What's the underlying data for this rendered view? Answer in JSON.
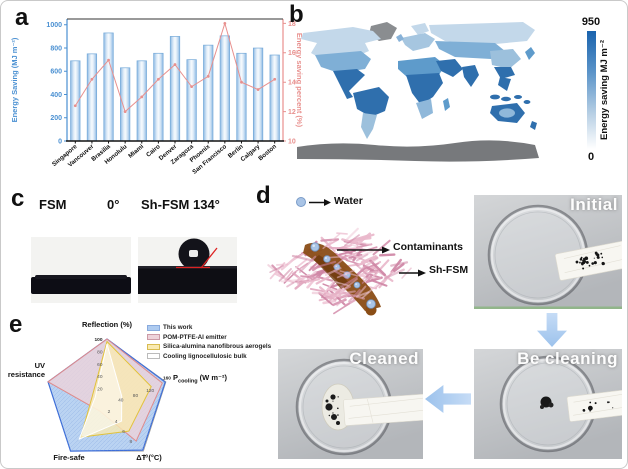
{
  "figure": {
    "panel_labels": {
      "a": "a",
      "b": "b",
      "c": "c",
      "d": "d",
      "e": "e"
    }
  },
  "panel_a": {
    "ylabel_left": "Energy Saving (MJ m⁻²)",
    "ylabel_right": "Energy saving percent (%)"
  },
  "panel_b": {
    "colorbar_max": "950",
    "colorbar_min": "0",
    "colorbar_label": "Energy saving MJ m⁻²"
  },
  "panel_c": {
    "left_sample": "FSM",
    "left_angle": "0°",
    "right_label": "Sh-FSM 134°"
  },
  "panel_d": {
    "water": "Water",
    "contaminants": "Contaminants",
    "membrane": "Sh-FSM",
    "photo_initial": "Initial",
    "photo_cleaning": "Be cleaning",
    "photo_cleaned": "Cleaned"
  },
  "panel_e": {
    "legend": [
      "This work",
      "POM-PTFE-Al emitter",
      "Silica-alumina nanofibrous aerogels",
      "Cooling lignocellulosic bulk"
    ],
    "axis_reflection": "Reflection (%)",
    "pcool": {
      "p": "P",
      "sub": "cooling",
      "units": " (W m⁻²)"
    },
    "axis_dt": "ΔT (°C)",
    "axis_firesafe": "Fire-safe",
    "axis_uv": "UV resistance"
  },
  "chart_data": [
    {
      "id": "city-energy-saving",
      "type": "bar",
      "categories": [
        "Singapore",
        "Vancouver",
        "Brasilia",
        "Honolulu",
        "Miami",
        "Cairo",
        "Denver",
        "Zaragoza",
        "Phoenix",
        "San Francisco",
        "Berlin",
        "Calgary",
        "Boston"
      ],
      "series": [
        {
          "name": "Energy Saving (MJ m⁻²)",
          "type": "bar",
          "axis": "left",
          "values": [
            690,
            750,
            930,
            630,
            690,
            755,
            900,
            700,
            825,
            905,
            755,
            800,
            740
          ]
        },
        {
          "name": "Energy saving percent (%)",
          "type": "line",
          "axis": "right",
          "values": [
            12.4,
            14.2,
            15.5,
            12.0,
            13.0,
            14.2,
            15.2,
            13.7,
            14.4,
            18.0,
            14.0,
            13.5,
            14.2
          ]
        }
      ],
      "ylim_left": [
        0,
        1000
      ],
      "yticks_left": [
        0,
        200,
        400,
        600,
        800,
        1000
      ],
      "ylim_right": [
        10,
        18
      ],
      "yticks_right": [
        10,
        12,
        14,
        16,
        18
      ],
      "bar_color": "#a9c9e8",
      "line_color": "#e8908e",
      "axis_left_color": "#4a90d2",
      "axis_right_color": "#e8908e",
      "grid": false,
      "legend_position": "none"
    },
    {
      "id": "global-energy-saving-map",
      "type": "heatmap",
      "colorbar": {
        "label": "Energy saving MJ m⁻²",
        "min": 0,
        "max": 950,
        "color_low": "#ffffff",
        "color_high": "#1a63ad"
      }
    },
    {
      "id": "performance-radar",
      "type": "radar",
      "axes": [
        {
          "label": "Reflection (%)",
          "max": 100,
          "ticks": [
            20,
            40,
            60,
            80,
            100
          ]
        },
        {
          "label": "P_cooling (W m⁻²)",
          "max": 160,
          "ticks": [
            40,
            80,
            120,
            160
          ]
        },
        {
          "label": "ΔT (°C)",
          "max": 10,
          "ticks": [
            2,
            4,
            6,
            8,
            10
          ]
        },
        {
          "label": "Fire-safe",
          "max": 100,
          "ticks": []
        },
        {
          "label": "UV resistance",
          "max": 100,
          "ticks": []
        }
      ],
      "series": [
        {
          "name": "This work",
          "color": "#aecbf0",
          "values": [
            100,
            158,
            9.8,
            100,
            100
          ]
        },
        {
          "name": "POM-PTFE-Al emitter",
          "color": "#eed3da",
          "values": [
            100,
            150,
            8,
            20,
            100
          ]
        },
        {
          "name": "Silica-alumina nanofibrous aerogels",
          "color": "#f9eab2",
          "values": [
            96,
            120,
            6,
            72,
            25
          ]
        },
        {
          "name": "Cooling lignocellulosic bulk",
          "color": "#ffffff",
          "values": [
            92,
            40,
            4,
            76,
            20
          ]
        }
      ],
      "legend_position": "top-right"
    }
  ]
}
